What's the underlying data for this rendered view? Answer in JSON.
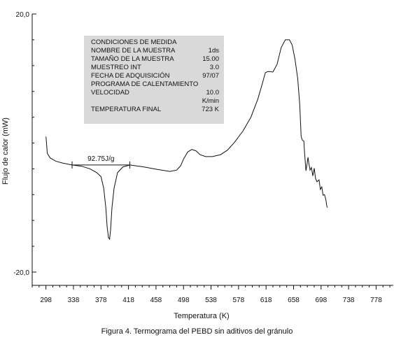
{
  "chart_data": {
    "type": "line",
    "xlabel": "Temperatura (K)",
    "ylabel": "Flujo de calor (mW)",
    "y_axis": {
      "top_label": "20,0",
      "bottom_label": "-20,0",
      "top_value": 20,
      "bottom_value": -20
    },
    "x_axis": {
      "ticks": [
        298,
        338,
        378,
        418,
        458,
        498,
        538,
        578,
        618,
        658,
        698,
        738,
        778
      ]
    },
    "xlim": [
      278,
      803
    ],
    "caption": "Figura 4. Termograma del PEBD sin aditivos del gránulo",
    "annotation": {
      "label": "92.75J/g",
      "from_x": 336,
      "to_x": 420,
      "y": -3.4
    },
    "info_box": {
      "rows": [
        {
          "label": "CONDICIONES DE MEDIDA",
          "value": ""
        },
        {
          "label": "NOMBRE DE LA MUESTRA",
          "value": "1ds"
        },
        {
          "label": "TAMAÑO DE LA MUESTRA",
          "value": "15.00"
        },
        {
          "label": "MUESTREO INT",
          "value": "3.0"
        },
        {
          "label": "FECHA DE ADQUISICIÓN",
          "value": "97/07"
        },
        {
          "label": "PROGRAMA DE CALENTAMIENTO",
          "value": ""
        },
        {
          "label": "VELOCIDAD",
          "value": "10.0"
        },
        {
          "label": "",
          "value": "K/min"
        },
        {
          "label": "TEMPERATURA FINAL",
          "value": "723 K"
        }
      ]
    },
    "series": [
      {
        "values": [
          [
            298,
            1.0
          ],
          [
            300,
            -1.6
          ],
          [
            304,
            -2.3
          ],
          [
            312,
            -2.8
          ],
          [
            322,
            -3.1
          ],
          [
            336,
            -3.4
          ],
          [
            350,
            -3.6
          ],
          [
            362,
            -4.0
          ],
          [
            372,
            -4.6
          ],
          [
            378,
            -5.2
          ],
          [
            382,
            -7.0
          ],
          [
            385,
            -10.0
          ],
          [
            387,
            -13.0
          ],
          [
            389,
            -14.7
          ],
          [
            390.5,
            -14.9
          ],
          [
            392,
            -13.5
          ],
          [
            394,
            -10.0
          ],
          [
            397,
            -7.0
          ],
          [
            402,
            -4.6
          ],
          [
            410,
            -3.7
          ],
          [
            420,
            -3.4
          ],
          [
            440,
            -3.7
          ],
          [
            460,
            -4.1
          ],
          [
            478,
            -4.4
          ],
          [
            488,
            -4.2
          ],
          [
            494,
            -3.5
          ],
          [
            498,
            -2.5
          ],
          [
            504,
            -1.4
          ],
          [
            510,
            -1.0
          ],
          [
            516,
            -1.2
          ],
          [
            522,
            -1.8
          ],
          [
            530,
            -2.1
          ],
          [
            540,
            -2.1
          ],
          [
            552,
            -1.8
          ],
          [
            562,
            -1.1
          ],
          [
            572,
            0.1
          ],
          [
            584,
            1.8
          ],
          [
            596,
            4.0
          ],
          [
            606,
            6.8
          ],
          [
            612,
            9.0
          ],
          [
            617,
            10.9
          ],
          [
            621,
            11.1
          ],
          [
            628,
            11.0
          ],
          [
            634,
            12.2
          ],
          [
            640,
            14.8
          ],
          [
            646,
            16.0
          ],
          [
            652,
            16.0
          ],
          [
            656,
            15.2
          ],
          [
            660,
            13.0
          ],
          [
            664,
            10.0
          ],
          [
            667,
            6.0
          ],
          [
            669,
            1.0
          ],
          [
            671,
            0.4
          ],
          [
            673,
            0.3
          ],
          [
            674,
            -1.5
          ],
          [
            676,
            -4.3
          ],
          [
            678,
            -3.0
          ],
          [
            679,
            -2.2
          ],
          [
            680,
            -3.0
          ],
          [
            682,
            -4.2
          ],
          [
            684,
            -3.8
          ],
          [
            686,
            -5.1
          ],
          [
            688,
            -3.9
          ],
          [
            690,
            -5.5
          ],
          [
            692,
            -6.0
          ],
          [
            695,
            -5.7
          ],
          [
            697,
            -7.2
          ],
          [
            699,
            -6.8
          ],
          [
            701,
            -8.1
          ],
          [
            703,
            -8.0
          ],
          [
            705,
            -8.8
          ],
          [
            706,
            -9.6
          ],
          [
            707,
            -10.0
          ]
        ]
      }
    ]
  }
}
